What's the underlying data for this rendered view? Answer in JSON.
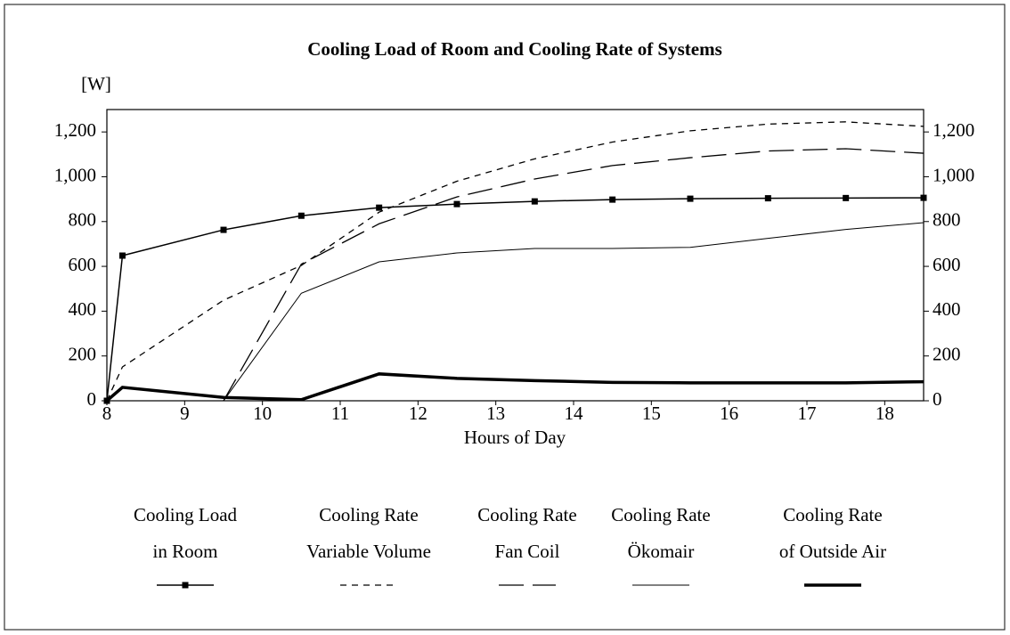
{
  "chart_data": {
    "type": "line",
    "title": "Cooling Load of Room and Cooling Rate of Systems",
    "ylabel": "[W]",
    "xlabel": "Hours of Day",
    "x": [
      8,
      8.2,
      9.5,
      10.5,
      11.5,
      12.5,
      13.5,
      14.5,
      15.5,
      16.5,
      17.5,
      18.5
    ],
    "xlim": [
      8,
      18.5
    ],
    "xticks": [
      8,
      9,
      10,
      11,
      12,
      13,
      14,
      15,
      16,
      17,
      18
    ],
    "ylim": [
      0,
      1300
    ],
    "yticks": [
      0,
      200,
      400,
      600,
      800,
      {
        "value": 1000,
        "label": "1,000"
      },
      {
        "value": 1200,
        "label": "1,200"
      }
    ],
    "y2lim": [
      0,
      1300
    ],
    "y2ticks": [
      0,
      200,
      400,
      600,
      800,
      {
        "value": 1000,
        "label": "1,000"
      },
      {
        "value": 1200,
        "label": "1,200"
      }
    ],
    "series": [
      {
        "name": [
          "Cooling Load",
          "in Room"
        ],
        "color": "#000000",
        "dash": "solid",
        "width": 1.5,
        "marker": "square",
        "values": [
          0,
          648,
          763,
          826,
          862,
          878,
          890,
          898,
          902,
          904,
          905,
          906
        ]
      },
      {
        "name": [
          "Cooling Rate",
          "Variable Volume"
        ],
        "color": "#000000",
        "dash": "dashed",
        "width": 1.3,
        "values": [
          0,
          151,
          449,
          604,
          842,
          980,
          1080,
          1155,
          1205,
          1235,
          1245,
          1225
        ]
      },
      {
        "name": [
          "Cooling Rate",
          "Fan Coil"
        ],
        "color": "#000000",
        "dash": "longdash",
        "width": 1.3,
        "values": [
          null,
          null,
          0,
          610,
          790,
          910,
          990,
          1050,
          1085,
          1115,
          1125,
          1105
        ]
      },
      {
        "name": [
          "Cooling Rate",
          "Ökomair"
        ],
        "color": "#000000",
        "dash": "solid",
        "width": 1,
        "values": [
          null,
          null,
          0,
          480,
          620,
          660,
          680,
          680,
          685,
          725,
          765,
          795
        ]
      },
      {
        "name": [
          "Cooling Rate",
          "of Outside Air"
        ],
        "color": "#000000",
        "dash": "solid",
        "width": 3.5,
        "values": [
          0,
          60,
          15,
          5,
          120,
          100,
          90,
          82,
          80,
          80,
          80,
          85
        ]
      }
    ]
  }
}
